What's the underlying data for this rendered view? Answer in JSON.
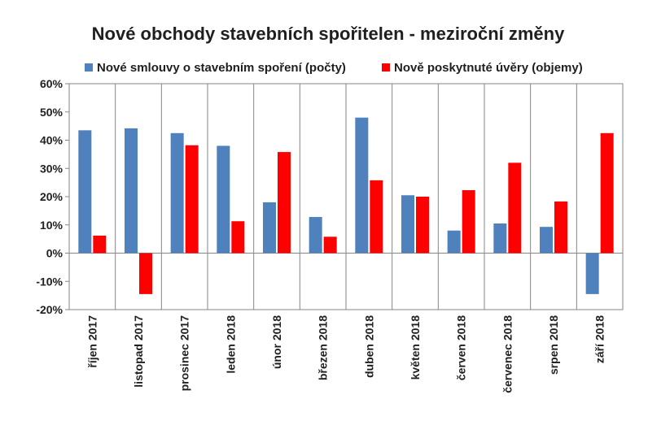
{
  "chart_data": {
    "type": "bar",
    "title": "Nové obchody stavebních spořitelen - meziroční změny",
    "categories": [
      "říjen 2017",
      "listopad 2017",
      "prosinec 2017",
      "leden 2018",
      "únor 2018",
      "březen 2018",
      "duben 2018",
      "květen 2018",
      "červen 2018",
      "červenec 2018",
      "srpen 2018",
      "září 2018"
    ],
    "series": [
      {
        "name": "Nové smlouvy o stavebním spoření (počty)",
        "color": "#4f81bd",
        "values": [
          43.5,
          44.2,
          42.5,
          38.0,
          18.0,
          12.8,
          48.0,
          20.5,
          8.0,
          10.5,
          9.3,
          -14.5
        ]
      },
      {
        "name": "Nově poskytnuté úvěry (objemy)",
        "color": "#ff0000",
        "values": [
          6.2,
          -14.5,
          38.2,
          11.3,
          35.8,
          5.8,
          25.8,
          20.0,
          22.3,
          32.0,
          18.3,
          42.5
        ]
      }
    ],
    "ylim": [
      -20,
      60
    ],
    "yticks": [
      -20,
      -10,
      0,
      10,
      20,
      30,
      40,
      50,
      60
    ],
    "ytick_labels": [
      "-20%",
      "-10%",
      "0%",
      "10%",
      "20%",
      "30%",
      "40%",
      "50%",
      "60%"
    ],
    "xlabel": "",
    "ylabel": "",
    "legend_position": "top",
    "grid": "vertical-category-separators"
  }
}
